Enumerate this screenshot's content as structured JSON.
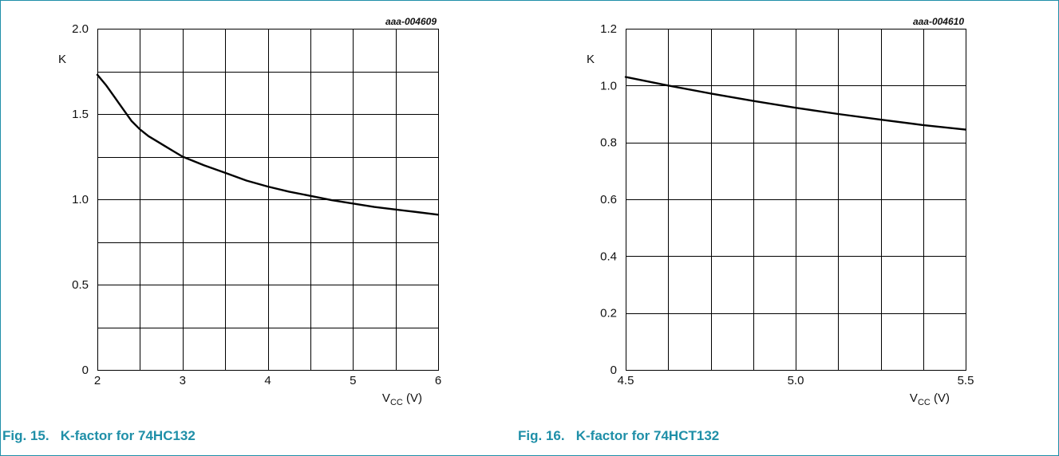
{
  "chart_data": [
    {
      "type": "line",
      "title": "",
      "caption": "Fig. 15.   K-factor for 74HC132",
      "annotation": "aaa-004609",
      "xlabel": "",
      "ylabel": "K",
      "xlabel_main": "V",
      "xlabel_sub": "CC",
      "xlabel_unit": " (V)",
      "xlim": [
        2,
        6
      ],
      "ylim": [
        0,
        2.0
      ],
      "xticks": [
        2,
        3,
        4,
        5,
        6
      ],
      "xtick_labels": [
        "2",
        "3",
        "4",
        "5",
        "6"
      ],
      "yticks": [
        0,
        0.5,
        1.0,
        1.5,
        2.0
      ],
      "ytick_labels": [
        "0",
        "0.5",
        "1.0",
        "1.5",
        "2.0"
      ],
      "grid": true,
      "grid_x_step": 0.5,
      "grid_y_step": 0.25,
      "series": [
        {
          "x": [
            2.0,
            2.1,
            2.2,
            2.3,
            2.4,
            2.5,
            2.6,
            2.7,
            2.8,
            2.9,
            3.0,
            3.25,
            3.5,
            3.75,
            4.0,
            4.25,
            4.5,
            4.75,
            5.0,
            5.25,
            5.5,
            5.75,
            6.0
          ],
          "y": [
            1.73,
            1.67,
            1.6,
            1.53,
            1.46,
            1.41,
            1.37,
            1.34,
            1.31,
            1.28,
            1.25,
            1.2,
            1.155,
            1.11,
            1.075,
            1.045,
            1.02,
            0.995,
            0.975,
            0.955,
            0.94,
            0.925,
            0.91
          ]
        }
      ]
    },
    {
      "type": "line",
      "title": "",
      "caption": "Fig. 16.   K-factor for 74HCT132",
      "annotation": "aaa-004610",
      "xlabel": "",
      "ylabel": "K",
      "xlabel_main": "V",
      "xlabel_sub": "CC",
      "xlabel_unit": " (V)",
      "xlim": [
        4.5,
        5.5
      ],
      "ylim": [
        0,
        1.2
      ],
      "xticks": [
        4.5,
        5.0,
        5.5
      ],
      "xtick_labels": [
        "4.5",
        "5.0",
        "5.5"
      ],
      "yticks": [
        0,
        0.2,
        0.4,
        0.6,
        0.8,
        1.0,
        1.2
      ],
      "ytick_labels": [
        "0",
        "0.2",
        "0.4",
        "0.6",
        "0.8",
        "1.0",
        "1.2"
      ],
      "grid": true,
      "grid_x_step": 0.125,
      "grid_y_step": 0.2,
      "series": [
        {
          "x": [
            4.5,
            4.625,
            4.75,
            4.875,
            5.0,
            5.125,
            5.25,
            5.375,
            5.5
          ],
          "y": [
            1.03,
            1.0,
            0.972,
            0.946,
            0.922,
            0.9,
            0.88,
            0.861,
            0.845
          ]
        }
      ]
    }
  ]
}
